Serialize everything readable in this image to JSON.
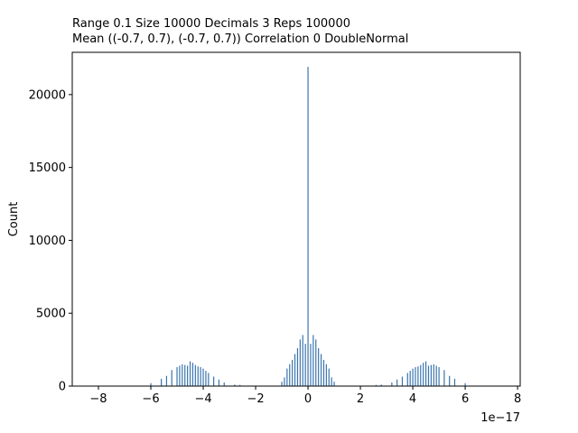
{
  "chart_data": {
    "type": "bar",
    "title_lines": [
      "Range 0.1   Size 10000   Decimals 3   Reps 100000",
      "Mean ((-0.7, 0.7), (-0.7, 0.7))  Correlation 0  DoubleNormal"
    ],
    "xlabel": "",
    "ylabel": "Count",
    "x_offset_label": "1e−17",
    "xlim": [
      -9.0,
      8.1
    ],
    "ylim": [
      0,
      22900
    ],
    "x_ticks": [
      -8,
      -6,
      -4,
      -2,
      0,
      2,
      4,
      6,
      8
    ],
    "x_tick_labels": [
      "−8",
      "−6",
      "−4",
      "−2",
      "0",
      "2",
      "4",
      "6",
      "8"
    ],
    "y_ticks": [
      0,
      5000,
      10000,
      15000,
      20000
    ],
    "y_tick_labels": [
      "0",
      "5000",
      "10000",
      "15000",
      "20000"
    ],
    "grid": false,
    "bar_color": "#3b75af",
    "series": [
      {
        "x": [
          -6.0,
          -5.6,
          -5.4,
          -5.2,
          -5.0,
          -4.9,
          -4.8,
          -4.7,
          -4.6,
          -4.5,
          -4.4,
          -4.3,
          -4.2,
          -4.1,
          -4.0,
          -3.9,
          -3.8,
          -3.6,
          -3.4,
          -3.2,
          -2.8,
          -2.6,
          -1.0,
          -0.9,
          -0.8,
          -0.7,
          -0.6,
          -0.5,
          -0.4,
          -0.3,
          -0.2,
          -0.1,
          0.0,
          0.1,
          0.2,
          0.3,
          0.4,
          0.5,
          0.6,
          0.7,
          0.8,
          0.9,
          1.0,
          2.6,
          2.8,
          3.2,
          3.4,
          3.6,
          3.8,
          3.9,
          4.0,
          4.1,
          4.2,
          4.3,
          4.4,
          4.5,
          4.6,
          4.7,
          4.8,
          4.9,
          5.0,
          5.2,
          5.4,
          5.6,
          6.0
        ],
        "values": [
          200,
          500,
          700,
          1100,
          1300,
          1400,
          1500,
          1450,
          1400,
          1700,
          1600,
          1450,
          1350,
          1300,
          1200,
          1050,
          900,
          650,
          450,
          250,
          100,
          80,
          300,
          600,
          1200,
          1500,
          1800,
          2200,
          2600,
          3200,
          3500,
          2900,
          21900,
          2900,
          3500,
          3200,
          2600,
          2200,
          1800,
          1500,
          1200,
          600,
          300,
          80,
          100,
          250,
          450,
          650,
          900,
          1050,
          1200,
          1300,
          1350,
          1450,
          1600,
          1700,
          1400,
          1450,
          1500,
          1400,
          1300,
          1100,
          700,
          500,
          200
        ]
      }
    ]
  }
}
